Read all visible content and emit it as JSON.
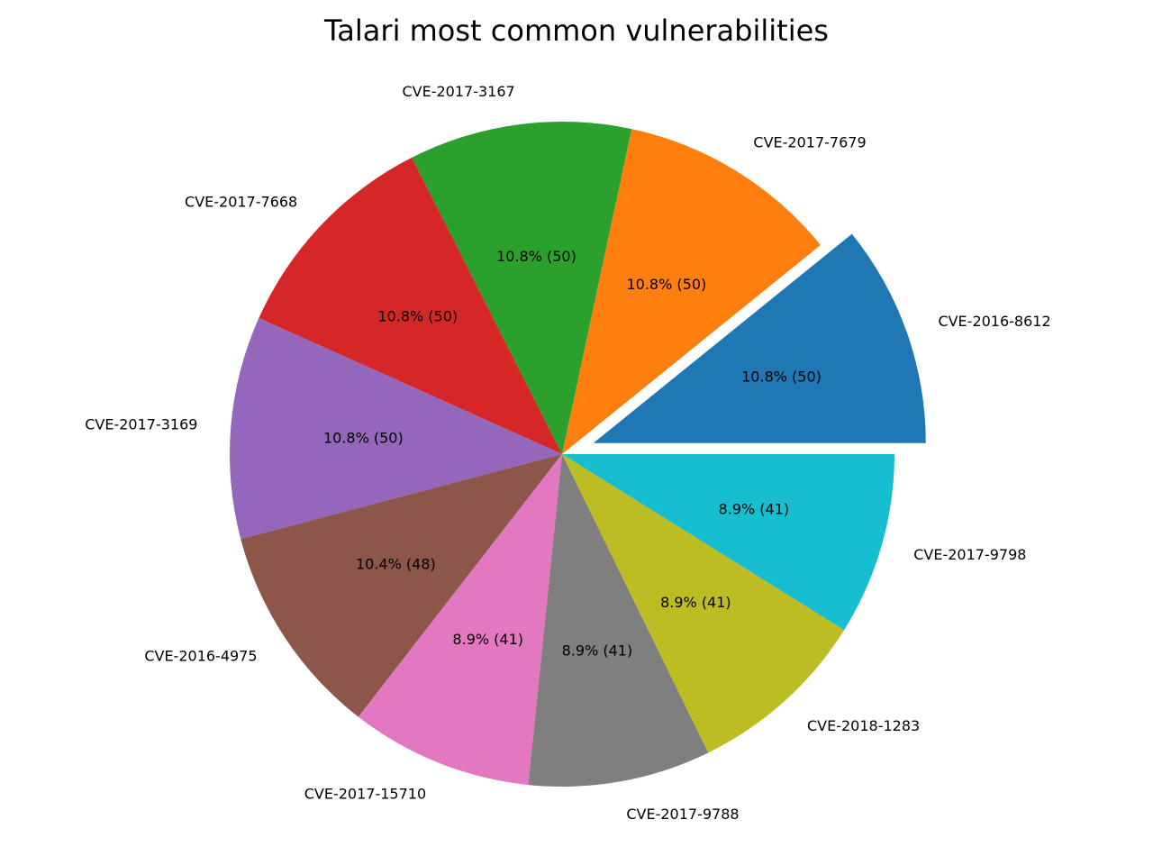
{
  "chart_data": {
    "type": "pie",
    "title": "Talari most common vulnerabilities",
    "start_angle_deg": 0,
    "direction": "counterclockwise",
    "exploded_index": 0,
    "slices": [
      {
        "label": "CVE-2016-8612",
        "value": 50,
        "pct_label": "10.8% (50)",
        "color": "#1f77b4"
      },
      {
        "label": "CVE-2017-7679",
        "value": 50,
        "pct_label": "10.8% (50)",
        "color": "#ff7f0e"
      },
      {
        "label": "CVE-2017-3167",
        "value": 50,
        "pct_label": "10.8% (50)",
        "color": "#2ca02c"
      },
      {
        "label": "CVE-2017-7668",
        "value": 50,
        "pct_label": "10.8% (50)",
        "color": "#d62728"
      },
      {
        "label": "CVE-2017-3169",
        "value": 50,
        "pct_label": "10.8% (50)",
        "color": "#9467bd"
      },
      {
        "label": "CVE-2016-4975",
        "value": 48,
        "pct_label": "10.4% (48)",
        "color": "#8c564b"
      },
      {
        "label": "CVE-2017-15710",
        "value": 41,
        "pct_label": "8.9% (41)",
        "color": "#e377c2"
      },
      {
        "label": "CVE-2017-9788",
        "value": 41,
        "pct_label": "8.9% (41)",
        "color": "#7f7f7f"
      },
      {
        "label": "CVE-2018-1283",
        "value": 41,
        "pct_label": "8.9% (41)",
        "color": "#bcbd22"
      },
      {
        "label": "CVE-2017-9798",
        "value": 41,
        "pct_label": "8.9% (41)",
        "color": "#17becf"
      }
    ]
  }
}
